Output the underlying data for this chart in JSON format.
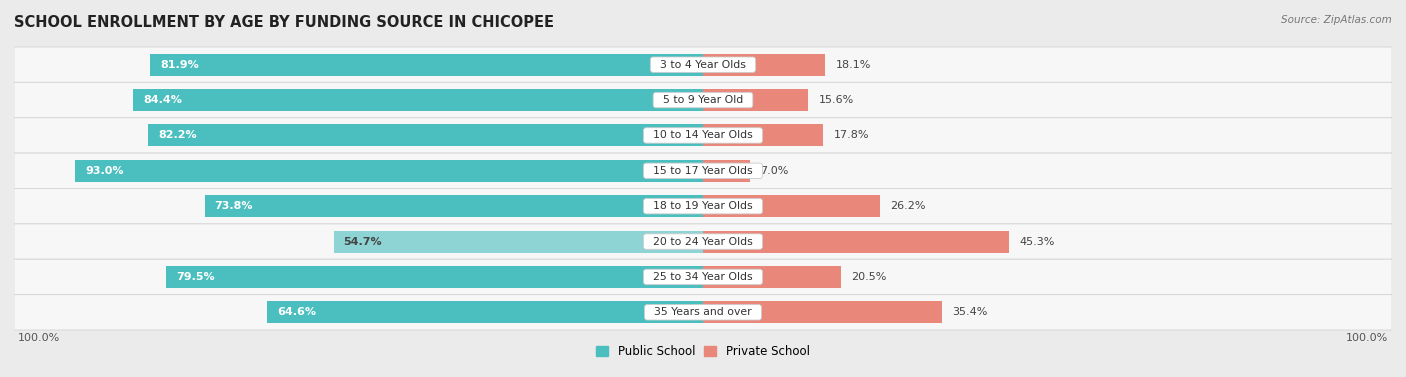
{
  "title": "SCHOOL ENROLLMENT BY AGE BY FUNDING SOURCE IN CHICOPEE",
  "source": "Source: ZipAtlas.com",
  "categories": [
    "3 to 4 Year Olds",
    "5 to 9 Year Old",
    "10 to 14 Year Olds",
    "15 to 17 Year Olds",
    "18 to 19 Year Olds",
    "20 to 24 Year Olds",
    "25 to 34 Year Olds",
    "35 Years and over"
  ],
  "public_values": [
    81.9,
    84.4,
    82.2,
    93.0,
    73.8,
    54.7,
    79.5,
    64.6
  ],
  "private_values": [
    18.1,
    15.6,
    17.8,
    7.0,
    26.2,
    45.3,
    20.5,
    35.4
  ],
  "public_color": "#4bbfc0",
  "private_color": "#e8877a",
  "public_color_20_24": "#8fd4d4",
  "bg_color": "#ebebeb",
  "row_bg": "#f7f7f7",
  "row_border": "#d8d8d8",
  "title_fontsize": 10.5,
  "label_fontsize": 8,
  "tick_fontsize": 8,
  "legend_fontsize": 8.5,
  "xlim": 100
}
